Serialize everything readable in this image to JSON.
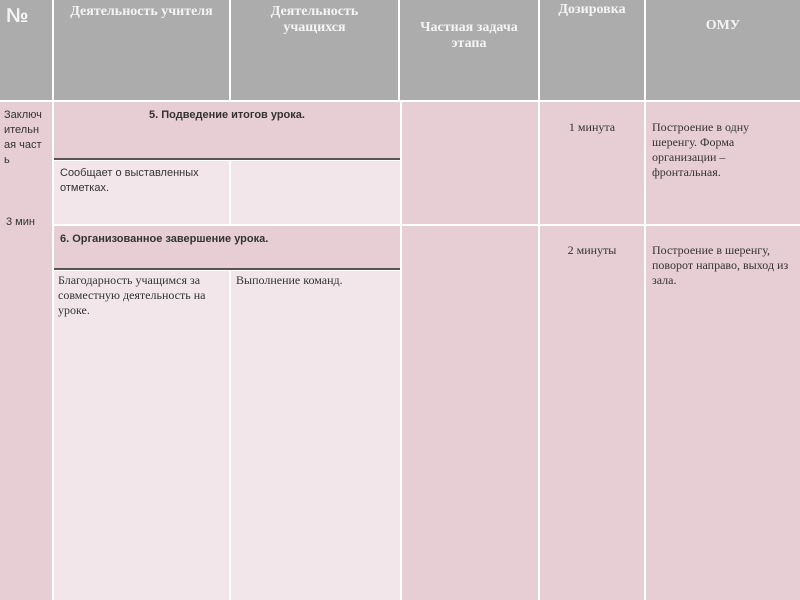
{
  "header": {
    "num": "№",
    "teacher": "Деятельность учителя",
    "students": "Деятельность учащихся",
    "task": "Частная задача этапа",
    "dosage": "Дозировка",
    "omu": "ОМУ"
  },
  "part": {
    "name": "Заключ ительн ая часть",
    "time": "3 мин"
  },
  "stages": [
    {
      "title": "5. Подведение итогов урока.",
      "teacher": "Сообщает о выставленных отметках.",
      "students": "",
      "dosage": "1 минута",
      "omu": "Построение в одну шеренгу. Форма организации – фронтальная."
    },
    {
      "title": "6. Организованное завершение урока.",
      "teacher": "Благодарность учащимся за совместную деятельность на уроке.",
      "students": "Выполнение команд.",
      "dosage": "2 минуты",
      "omu": "Построение в шеренгу, поворот направо, выход из зала."
    }
  ]
}
